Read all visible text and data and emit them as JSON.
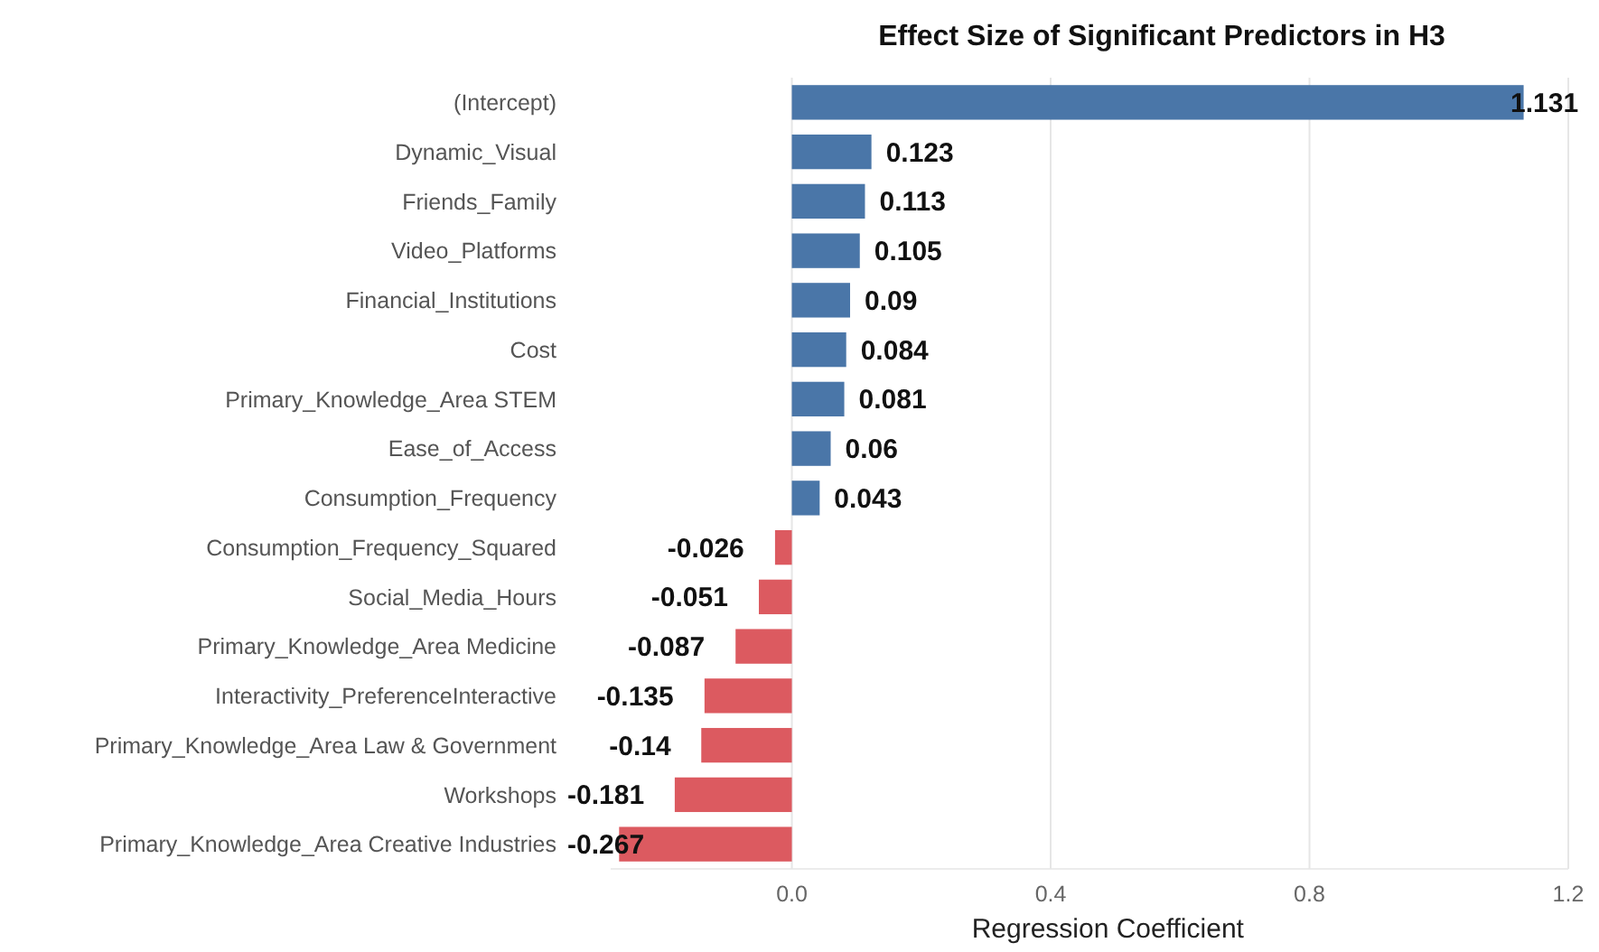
{
  "chart_data": {
    "type": "bar",
    "orientation": "horizontal",
    "title": "Effect Size of Significant Predictors in H3",
    "xlabel": "Regression Coefficient",
    "categories": [
      "(Intercept)",
      "Dynamic_Visual",
      "Friends_Family",
      "Video_Platforms",
      "Financial_Institutions",
      "Cost",
      "Primary_Knowledge_Area STEM",
      "Ease_of_Access",
      "Consumption_Frequency",
      "Consumption_Frequency_Squared",
      "Social_Media_Hours",
      "Primary_Knowledge_Area Medicine",
      "Interactivity_PreferenceInteractive",
      "Primary_Knowledge_Area Law & Government",
      "Workshops",
      "Primary_Knowledge_Area Creative Industries"
    ],
    "values": [
      1.131,
      0.123,
      0.113,
      0.105,
      0.09,
      0.084,
      0.081,
      0.06,
      0.043,
      -0.026,
      -0.051,
      -0.087,
      -0.135,
      -0.14,
      -0.181,
      -0.267
    ],
    "colors": [
      "#4a76a8",
      "#4a76a8",
      "#4a76a8",
      "#4a76a8",
      "#4a76a8",
      "#4a76a8",
      "#4a76a8",
      "#4a76a8",
      "#4a76a8",
      "#dc5a60",
      "#dc5a60",
      "#dc5a60",
      "#dc5a60",
      "#dc5a60",
      "#dc5a60",
      "#dc5a60"
    ],
    "xlim": [
      -0.28,
      1.2
    ],
    "xticks": [
      {
        "value": 0,
        "label": "0.0"
      },
      0.4,
      0.8,
      1.2
    ],
    "grid": "x",
    "data_labels": true
  }
}
